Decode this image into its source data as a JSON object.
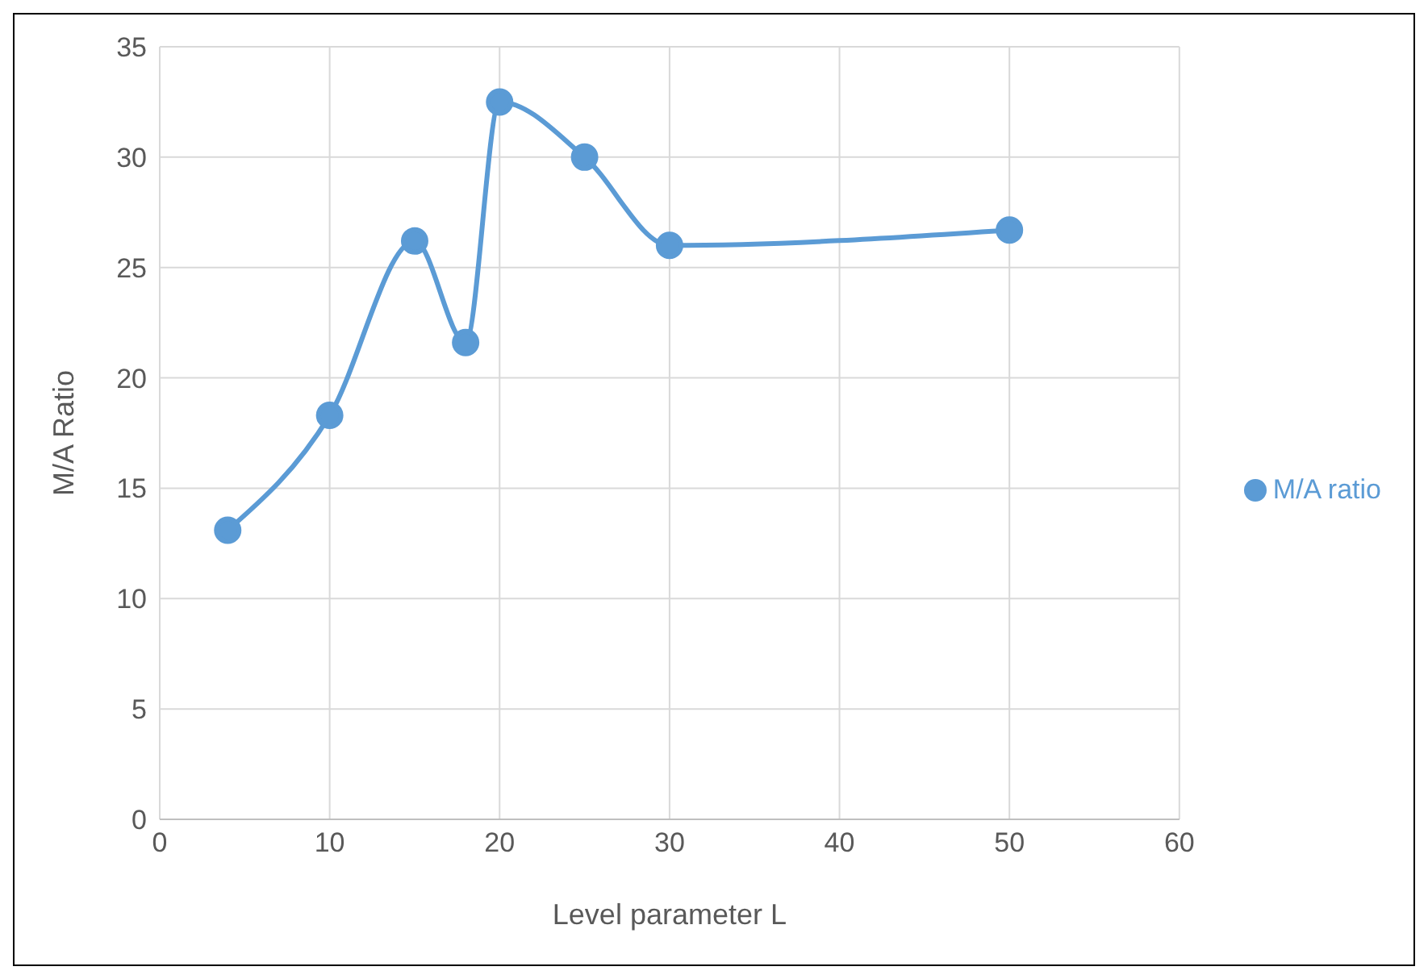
{
  "chart_data": {
    "type": "line",
    "xlabel": "Level parameter L",
    "ylabel": "M/A Ratio",
    "x": [
      4,
      10,
      15,
      18,
      20,
      25,
      30,
      50
    ],
    "series": [
      {
        "name": "M/A ratio",
        "color": "#5b9bd5",
        "values": [
          13.1,
          18.3,
          26.2,
          21.6,
          32.5,
          30,
          26,
          26.7
        ]
      }
    ],
    "xlim": [
      0,
      60
    ],
    "xticks": [
      0,
      10,
      20,
      30,
      40,
      50,
      60
    ],
    "ylim": [
      0,
      35
    ],
    "yticks": [
      0,
      5,
      10,
      15,
      20,
      25,
      30,
      35
    ],
    "grid": true,
    "legend": "right",
    "marker": "circle",
    "line_style": "solid"
  }
}
